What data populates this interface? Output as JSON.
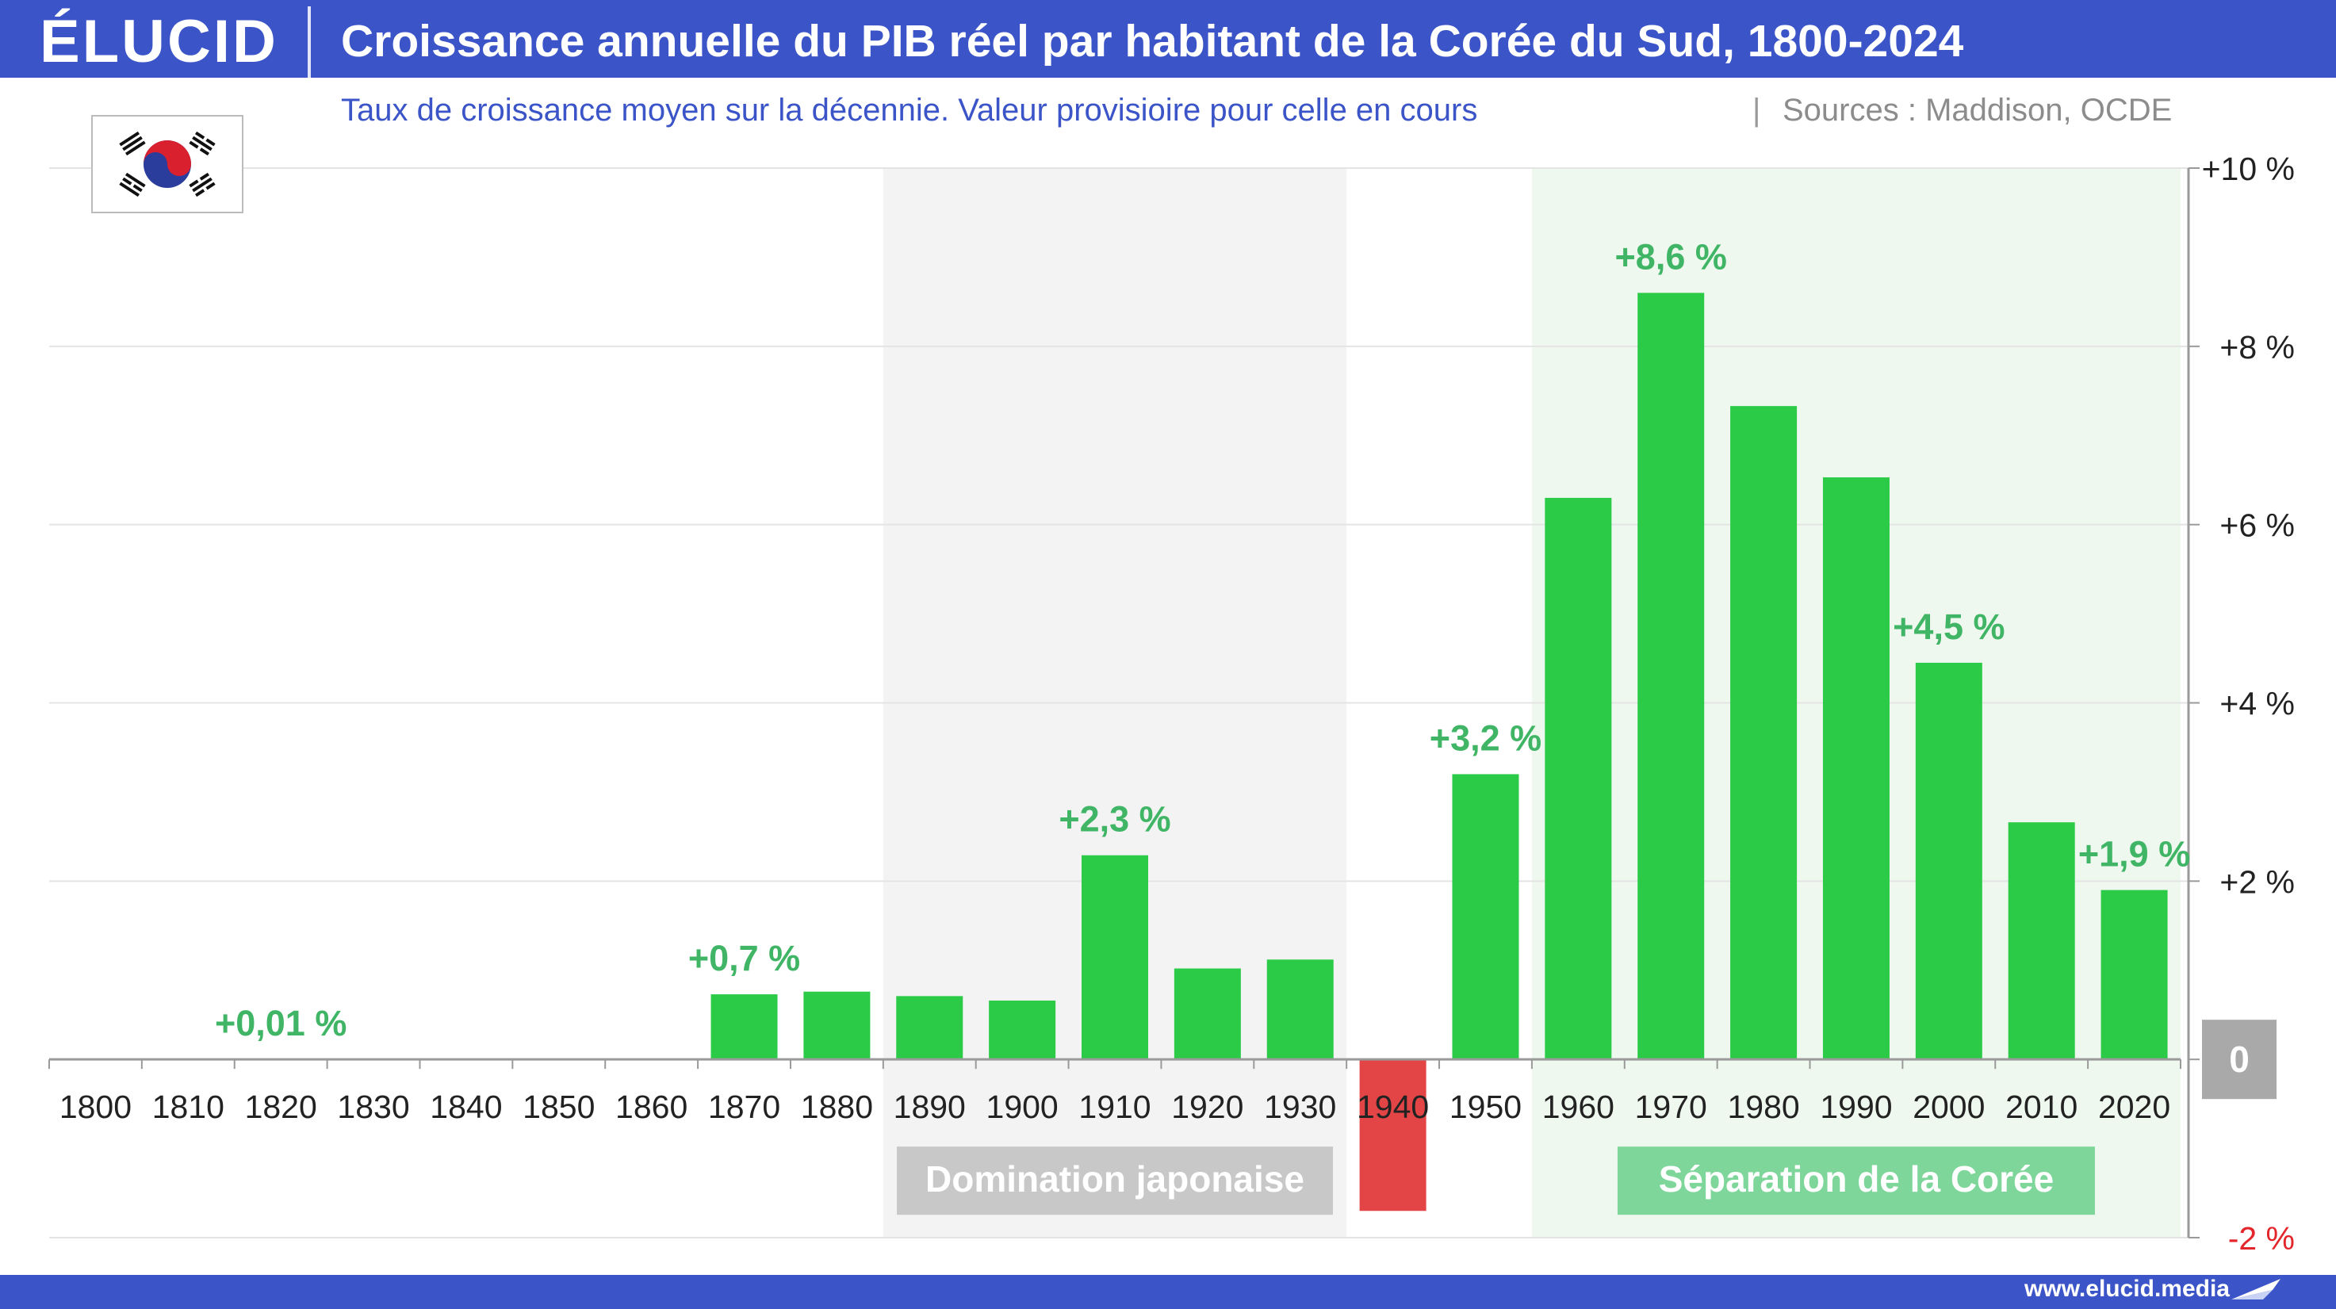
{
  "header": {
    "logo": "ÉLUCID",
    "title": "Croissance annuelle du PIB réel par habitant de la Corée du Sud, 1800-2024"
  },
  "subtitle": {
    "description": "Taux de croissance moyen sur la décennie. Valeur provisioire pour celle en cours",
    "separator": "|",
    "sources": "Sources : Maddison, OCDE"
  },
  "footer": {
    "url": "www.elucid.media"
  },
  "colors": {
    "brand_blue": "#3b55c8",
    "bar_positive": "#2bcb47",
    "bar_negative": "#e34547",
    "label_green": "#3fb565",
    "zero_badge": "#a9a9a9",
    "axis_negative_label": "#e3262b"
  },
  "chart_data": {
    "type": "bar",
    "title": "Croissance annuelle du PIB réel par habitant de la Corée du Sud, 1800-2024",
    "subtitle": "Taux de croissance moyen sur la décennie. Valeur provisioire pour celle en cours",
    "categories": [
      "1800",
      "1810",
      "1820",
      "1830",
      "1840",
      "1850",
      "1860",
      "1870",
      "1880",
      "1890",
      "1900",
      "1910",
      "1920",
      "1930",
      "1940",
      "1950",
      "1960",
      "1970",
      "1980",
      "1990",
      "2000",
      "2010",
      "2020"
    ],
    "values": [
      0.01,
      0.01,
      0.01,
      0.01,
      0.01,
      0.01,
      0.01,
      0.73,
      0.76,
      0.71,
      0.66,
      2.29,
      1.02,
      1.12,
      -1.7,
      3.2,
      6.3,
      8.6,
      7.33,
      6.53,
      4.45,
      2.66,
      1.9
    ],
    "data_labels": [
      {
        "category": "1820",
        "text": "+0,01 %"
      },
      {
        "category": "1870",
        "text": "+0,7 %"
      },
      {
        "category": "1910",
        "text": "+2,3 %"
      },
      {
        "category": "1950",
        "text": "+3,2 %"
      },
      {
        "category": "1970",
        "text": "+8,6 %"
      },
      {
        "category": "2000",
        "text": "+4,5 %"
      },
      {
        "category": "2020",
        "text": "+1,9 %"
      }
    ],
    "ylim": [
      -2,
      10
    ],
    "yticks": [
      {
        "value": 10,
        "label": "+10 %"
      },
      {
        "value": 8,
        "label": "+8 %"
      },
      {
        "value": 6,
        "label": "+6 %"
      },
      {
        "value": 4,
        "label": "+4 %"
      },
      {
        "value": 2,
        "label": "+2 %"
      },
      {
        "value": 0,
        "label": "0"
      },
      {
        "value": -2,
        "label": "-2 %"
      }
    ],
    "y_axis_position": "right",
    "grid": true,
    "shaded_periods": [
      {
        "label": "Domination japonaise",
        "from": "1890",
        "to": "1930",
        "color": "#f3f3f3",
        "label_bg": "#c8c8c8"
      },
      {
        "label": "Séparation de la Corée",
        "from": "1960",
        "to": "2020",
        "color": "#eef8ee",
        "label_bg": "#7fd69b"
      }
    ]
  }
}
